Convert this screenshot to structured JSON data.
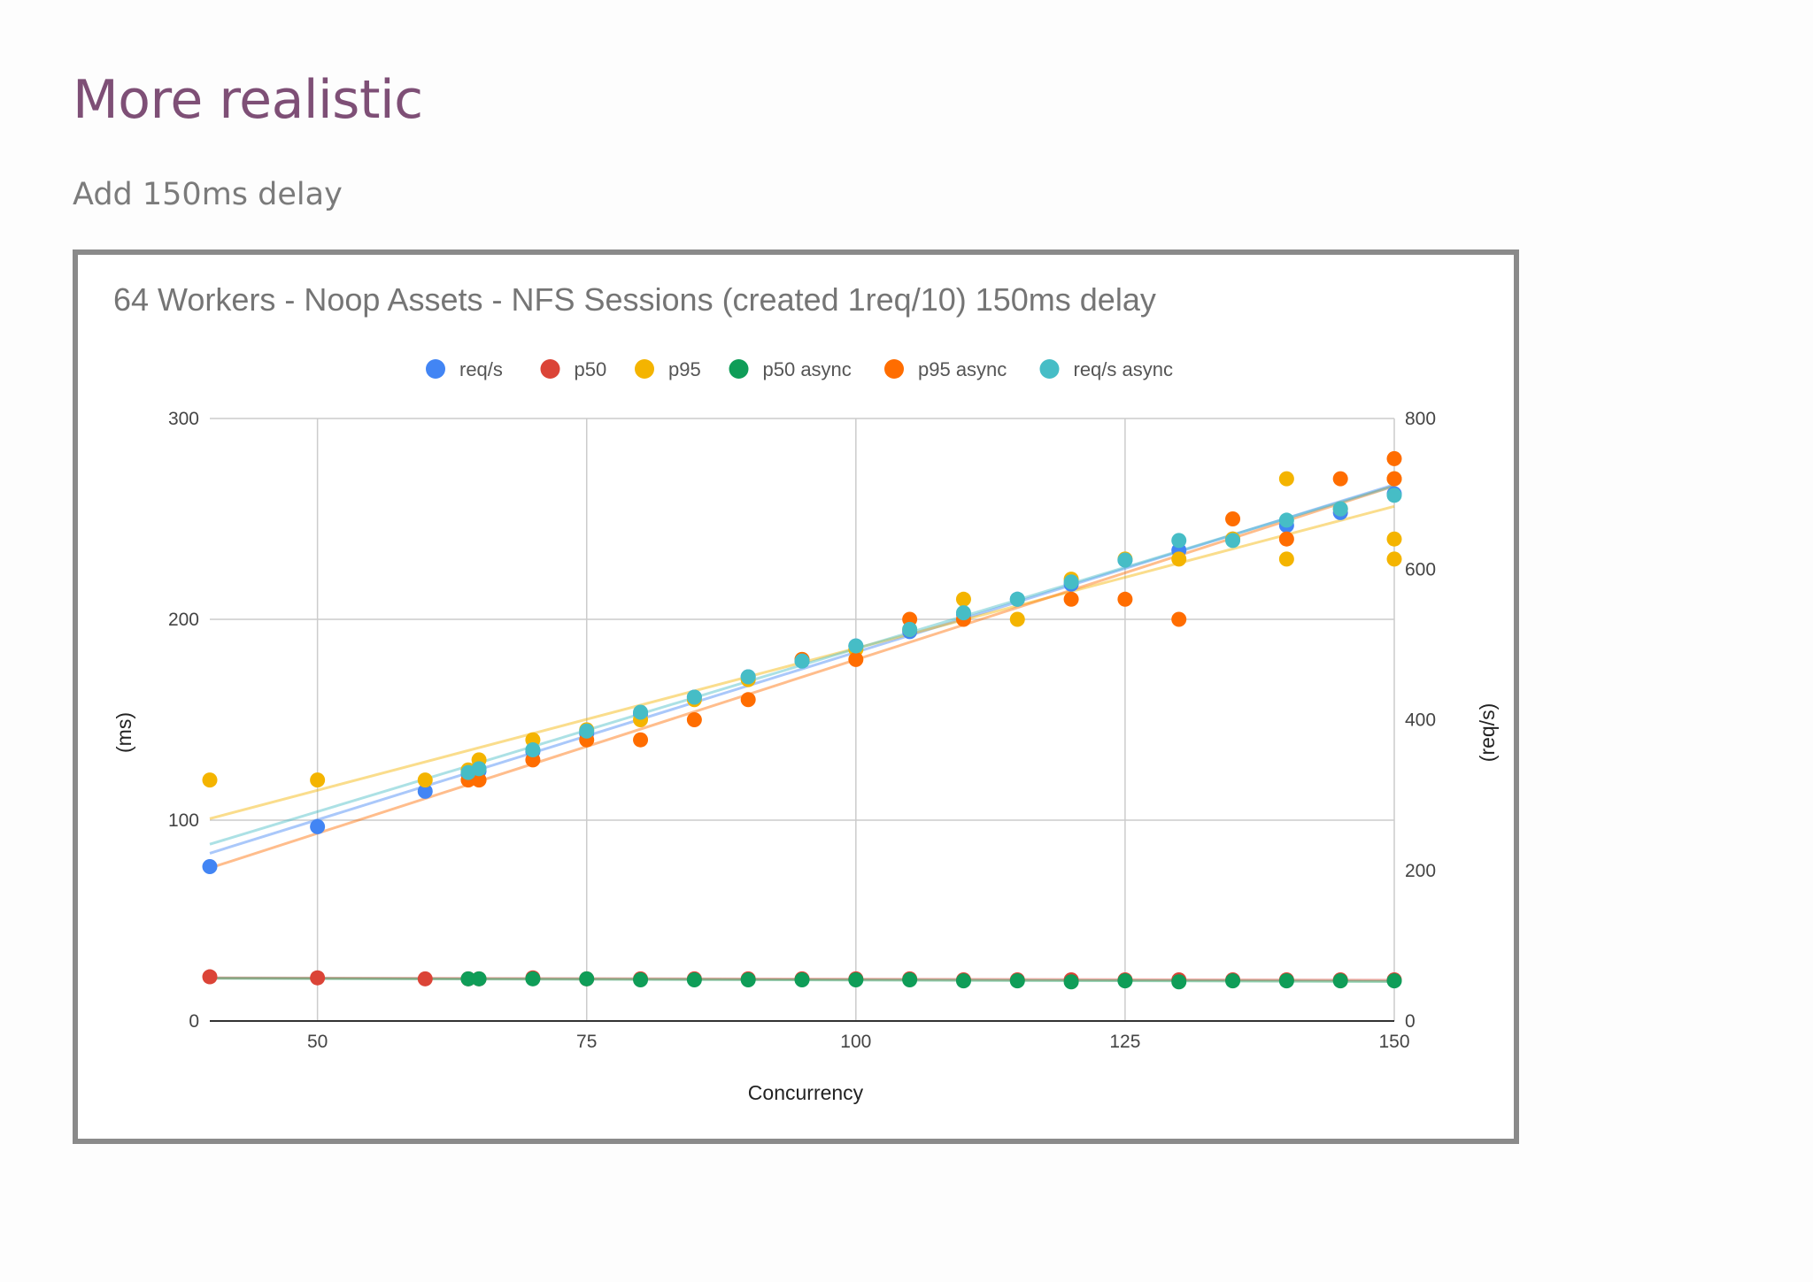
{
  "slide": {
    "title": "More realistic",
    "subtitle": "Add 150ms delay"
  },
  "chart_data": {
    "type": "scatter",
    "title": "64 Workers - Noop Assets - NFS Sessions (created 1req/10) 150ms delay",
    "xlabel": "Concurrency",
    "ylabel_left": "(ms)",
    "ylabel_right": "(req/s)",
    "xlim": [
      40,
      150
    ],
    "ylim_left": [
      0,
      300
    ],
    "ylim_right": [
      0,
      800
    ],
    "x_ticks": [
      50,
      75,
      100,
      125,
      150
    ],
    "y_ticks_left": [
      0,
      100,
      200,
      300
    ],
    "y_ticks_right": [
      0,
      200,
      400,
      600,
      800
    ],
    "grid": true,
    "legend_position": "top",
    "trendlines": true,
    "series": [
      {
        "name": "req/s",
        "color": "#4285f4",
        "axis": "right",
        "x": [
          40,
          50,
          60,
          64,
          65,
          70,
          75,
          80,
          85,
          90,
          95,
          100,
          105,
          110,
          115,
          120,
          125,
          130,
          135,
          140,
          145,
          150
        ],
        "values": [
          205,
          258,
          305,
          328,
          332,
          358,
          382,
          408,
          430,
          457,
          478,
          498,
          517,
          540,
          560,
          580,
          612,
          625,
          640,
          658,
          675,
          700
        ]
      },
      {
        "name": "p50",
        "color": "#db4437",
        "axis": "left",
        "x": [
          40,
          50,
          60,
          64,
          65,
          70,
          75,
          80,
          85,
          90,
          95,
          100,
          105,
          110,
          115,
          120,
          125,
          130,
          135,
          140,
          145,
          150
        ],
        "values": [
          22,
          21.5,
          21,
          21,
          21,
          21.5,
          21,
          21,
          21,
          21,
          21,
          21,
          21,
          20.5,
          20.5,
          20.5,
          20.5,
          20.5,
          20.5,
          20.5,
          20.5,
          20.5
        ]
      },
      {
        "name": "p95",
        "color": "#f4b400",
        "axis": "left",
        "x": [
          40,
          50,
          60,
          64,
          65,
          70,
          75,
          80,
          85,
          90,
          95,
          100,
          105,
          110,
          115,
          120,
          125,
          130,
          135,
          140,
          140,
          145,
          150,
          150,
          150
        ],
        "values": [
          120,
          120,
          120,
          125,
          130,
          140,
          145,
          150,
          160,
          170,
          180,
          185,
          195,
          210,
          200,
          220,
          230,
          230,
          240,
          270,
          230,
          255,
          270,
          240,
          230
        ]
      },
      {
        "name": "p50 async",
        "color": "#0f9d58",
        "axis": "left",
        "x": [
          64,
          65,
          70,
          75,
          80,
          85,
          90,
          95,
          100,
          105,
          110,
          115,
          120,
          125,
          130,
          135,
          140,
          145,
          150
        ],
        "values": [
          21,
          21,
          21,
          21,
          20.5,
          20.5,
          20.5,
          20.5,
          20.5,
          20.5,
          20,
          20,
          19.5,
          20,
          19.5,
          20,
          20,
          20,
          20
        ]
      },
      {
        "name": "p95 async",
        "color": "#ff6d00",
        "axis": "left",
        "x": [
          64,
          65,
          70,
          75,
          80,
          85,
          90,
          95,
          100,
          105,
          110,
          120,
          125,
          130,
          135,
          140,
          145,
          150,
          150
        ],
        "values": [
          120,
          120,
          130,
          140,
          140,
          150,
          160,
          180,
          180,
          200,
          200,
          210,
          210,
          200,
          250,
          240,
          270,
          280,
          270
        ]
      },
      {
        "name": "req/s async",
        "color": "#46bdc6",
        "axis": "right",
        "x": [
          64,
          65,
          70,
          75,
          80,
          85,
          90,
          95,
          100,
          105,
          110,
          115,
          120,
          125,
          130,
          135,
          140,
          145,
          150
        ],
        "values": [
          330,
          335,
          360,
          385,
          410,
          430,
          457,
          478,
          498,
          520,
          542,
          560,
          583,
          612,
          638,
          638,
          665,
          680,
          698
        ]
      }
    ]
  }
}
